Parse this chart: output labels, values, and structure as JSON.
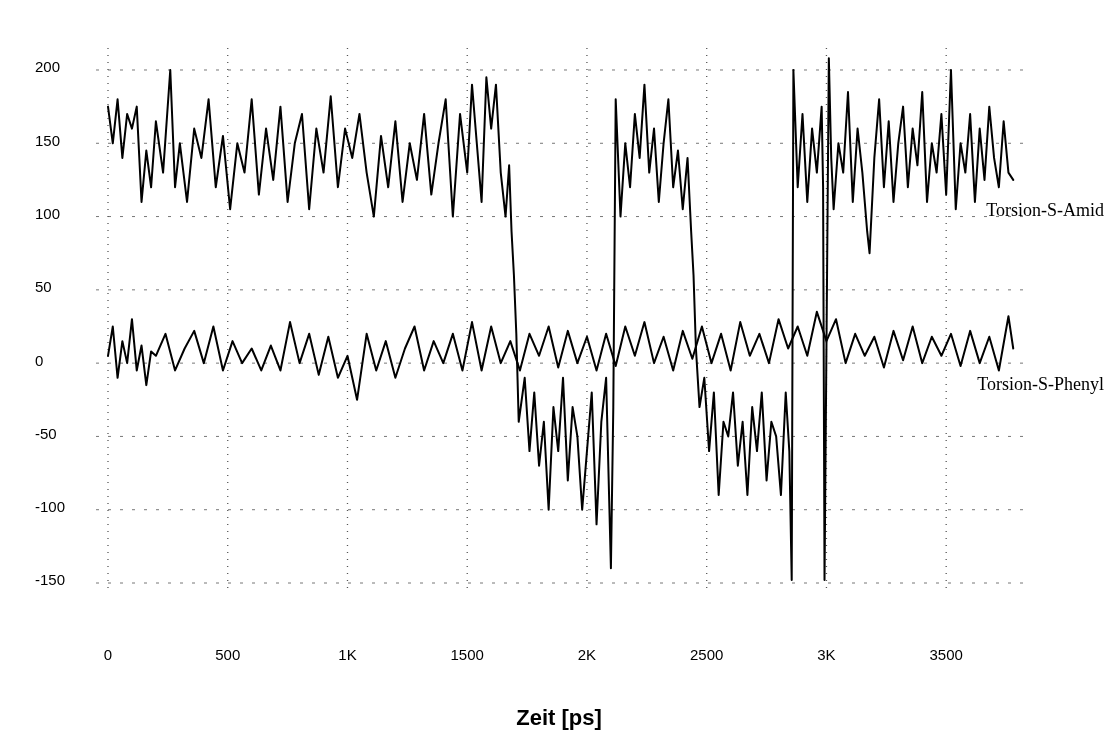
{
  "chart_data": {
    "type": "line",
    "xlabel": "Zeit  [ps]",
    "xlim": [
      0,
      3850
    ],
    "ylim": [
      -150,
      215
    ],
    "xticks": [
      0,
      500,
      {
        "value": 1000,
        "label": "1K"
      },
      1500,
      {
        "value": 2000,
        "label": "2K"
      },
      2500,
      {
        "value": 3000,
        "label": "3K"
      },
      3500
    ],
    "yticks": [
      -150,
      -100,
      -50,
      0,
      50,
      100,
      150,
      200
    ],
    "grid": true,
    "legend": false,
    "line_style": "solid",
    "series": [
      {
        "name": "Torsion-S-Phenyl",
        "color": "#000000",
        "x": [
          0,
          20,
          40,
          60,
          80,
          100,
          120,
          140,
          160,
          180,
          200,
          240,
          280,
          320,
          360,
          400,
          440,
          480,
          520,
          560,
          600,
          640,
          680,
          720,
          760,
          800,
          840,
          880,
          920,
          960,
          1000,
          1040,
          1080,
          1120,
          1160,
          1200,
          1240,
          1280,
          1320,
          1360,
          1400,
          1440,
          1480,
          1520,
          1560,
          1600,
          1640,
          1680,
          1720,
          1760,
          1800,
          1840,
          1880,
          1920,
          1960,
          2000,
          2040,
          2080,
          2120,
          2160,
          2200,
          2240,
          2280,
          2320,
          2360,
          2400,
          2440,
          2480,
          2520,
          2560,
          2600,
          2640,
          2680,
          2720,
          2760,
          2800,
          2840,
          2880,
          2920,
          2960,
          3000,
          3040,
          3080,
          3120,
          3160,
          3200,
          3240,
          3280,
          3320,
          3360,
          3400,
          3440,
          3480,
          3520,
          3560,
          3600,
          3640,
          3680,
          3720,
          3760,
          3780
        ],
        "values": [
          5,
          25,
          -10,
          15,
          0,
          30,
          -5,
          12,
          -15,
          8,
          5,
          20,
          -5,
          10,
          22,
          0,
          25,
          -5,
          15,
          0,
          10,
          -5,
          12,
          -5,
          28,
          0,
          20,
          -8,
          18,
          -10,
          5,
          -25,
          20,
          -5,
          15,
          -10,
          10,
          25,
          -5,
          15,
          0,
          20,
          -5,
          28,
          -5,
          25,
          0,
          15,
          -5,
          20,
          5,
          25,
          -3,
          22,
          0,
          18,
          -5,
          20,
          -2,
          25,
          5,
          28,
          0,
          18,
          -5,
          22,
          3,
          25,
          0,
          20,
          -5,
          28,
          5,
          20,
          0,
          30,
          10,
          25,
          5,
          35,
          15,
          30,
          0,
          20,
          5,
          18,
          -3,
          22,
          2,
          25,
          0,
          18,
          5,
          20,
          -2,
          22,
          0,
          18,
          -5,
          32,
          10
        ]
      },
      {
        "name": "Torsion-S-Amid",
        "color": "#000000",
        "x": [
          0,
          20,
          40,
          60,
          80,
          100,
          120,
          140,
          160,
          180,
          200,
          230,
          260,
          280,
          300,
          330,
          360,
          390,
          420,
          450,
          480,
          510,
          540,
          570,
          600,
          630,
          660,
          690,
          720,
          750,
          780,
          810,
          840,
          870,
          900,
          930,
          960,
          990,
          1020,
          1050,
          1080,
          1110,
          1140,
          1170,
          1200,
          1230,
          1260,
          1290,
          1320,
          1350,
          1380,
          1410,
          1440,
          1470,
          1500,
          1520,
          1540,
          1560,
          1580,
          1600,
          1620,
          1640,
          1660,
          1675,
          1685,
          1695,
          1705,
          1715,
          1740,
          1760,
          1780,
          1800,
          1820,
          1840,
          1860,
          1880,
          1900,
          1920,
          1940,
          1960,
          1980,
          2000,
          2020,
          2040,
          2060,
          2080,
          2100,
          2110,
          2120,
          2140,
          2160,
          2180,
          2200,
          2220,
          2240,
          2260,
          2280,
          2300,
          2320,
          2340,
          2360,
          2380,
          2400,
          2420,
          2435,
          2445,
          2455,
          2470,
          2490,
          2510,
          2530,
          2550,
          2570,
          2590,
          2610,
          2630,
          2650,
          2670,
          2690,
          2710,
          2730,
          2750,
          2770,
          2790,
          2810,
          2830,
          2845,
          2855,
          2862,
          2880,
          2900,
          2920,
          2940,
          2960,
          2980,
          2986,
          2992,
          3010,
          3020,
          3030,
          3050,
          3070,
          3090,
          3110,
          3130,
          3150,
          3170,
          3180,
          3200,
          3220,
          3240,
          3260,
          3280,
          3300,
          3320,
          3340,
          3360,
          3380,
          3400,
          3420,
          3440,
          3460,
          3480,
          3500,
          3520,
          3540,
          3560,
          3580,
          3600,
          3620,
          3640,
          3660,
          3680,
          3700,
          3720,
          3740,
          3760,
          3780
        ],
        "values": [
          175,
          150,
          180,
          140,
          170,
          160,
          175,
          110,
          145,
          120,
          165,
          130,
          200,
          120,
          150,
          110,
          160,
          140,
          180,
          120,
          155,
          105,
          150,
          130,
          180,
          115,
          160,
          125,
          175,
          110,
          150,
          170,
          105,
          160,
          130,
          182,
          120,
          160,
          140,
          170,
          130,
          100,
          155,
          120,
          165,
          110,
          150,
          125,
          170,
          115,
          150,
          180,
          100,
          170,
          130,
          190,
          150,
          110,
          195,
          160,
          190,
          130,
          100,
          135,
          90,
          60,
          20,
          -40,
          -10,
          -60,
          -20,
          -70,
          -40,
          -100,
          -30,
          -60,
          -10,
          -80,
          -30,
          -50,
          -100,
          -60,
          -20,
          -110,
          -40,
          -10,
          -140,
          -30,
          180,
          100,
          150,
          120,
          170,
          140,
          190,
          130,
          160,
          110,
          150,
          180,
          120,
          145,
          105,
          140,
          90,
          60,
          10,
          -30,
          -10,
          -60,
          -20,
          -90,
          -40,
          -50,
          -20,
          -70,
          -40,
          -90,
          -30,
          -60,
          -20,
          -80,
          -40,
          -50,
          -90,
          -20,
          -60,
          -148,
          200,
          120,
          170,
          110,
          160,
          130,
          175,
          120,
          -148,
          208,
          140,
          105,
          150,
          130,
          185,
          110,
          160,
          130,
          90,
          75,
          140,
          180,
          120,
          165,
          110,
          150,
          175,
          120,
          160,
          135,
          185,
          110,
          150,
          130,
          170,
          115,
          200,
          105,
          150,
          130,
          170,
          110,
          160,
          125,
          175,
          140,
          120,
          165,
          130,
          125
        ]
      }
    ]
  }
}
